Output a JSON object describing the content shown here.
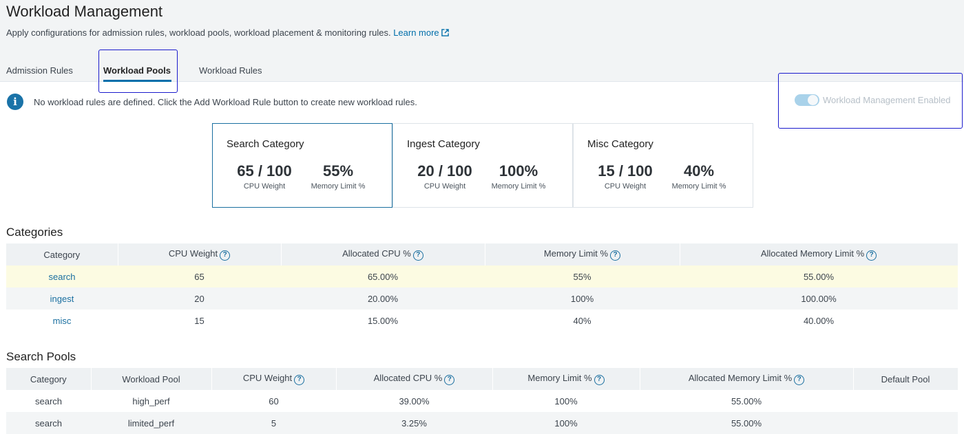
{
  "header": {
    "title": "Workload Management",
    "subtitle": "Apply configurations for admission rules, workload pools, workload placement & monitoring rules.",
    "learn_more": "Learn more"
  },
  "tabs": [
    {
      "label": "Admission Rules",
      "active": false
    },
    {
      "label": "Workload Pools",
      "active": true
    },
    {
      "label": "Workload Rules",
      "active": false
    }
  ],
  "info_message": "No workload rules are defined. Click the Add Workload Rule button to create new workload rules.",
  "toggle": {
    "label": "Workload Management Enabled",
    "enabled": true
  },
  "cards": [
    {
      "title": "Search Category",
      "cpu": "65 / 100",
      "cpu_label": "CPU Weight",
      "mem": "55%",
      "mem_label": "Memory Limit %"
    },
    {
      "title": "Ingest Category",
      "cpu": "20 / 100",
      "cpu_label": "CPU Weight",
      "mem": "100%",
      "mem_label": "Memory Limit %"
    },
    {
      "title": "Misc Category",
      "cpu": "15 / 100",
      "cpu_label": "CPU Weight",
      "mem": "40%",
      "mem_label": "Memory Limit %"
    }
  ],
  "categories": {
    "title": "Categories",
    "columns": [
      "Category",
      "CPU Weight",
      "Allocated CPU %",
      "Memory Limit %",
      "Allocated Memory Limit %"
    ],
    "rows": [
      [
        "search",
        "65",
        "65.00%",
        "55%",
        "55.00%"
      ],
      [
        "ingest",
        "20",
        "20.00%",
        "100%",
        "100.00%"
      ],
      [
        "misc",
        "15",
        "15.00%",
        "40%",
        "40.00%"
      ]
    ]
  },
  "search_pools": {
    "title": "Search Pools",
    "columns": [
      "Category",
      "Workload Pool",
      "CPU Weight",
      "Allocated CPU %",
      "Memory Limit %",
      "Allocated Memory Limit %",
      "Default Pool"
    ],
    "rows": [
      [
        "search",
        "high_perf",
        "60",
        "39.00%",
        "100%",
        "55.00%",
        ""
      ],
      [
        "search",
        "limited_perf",
        "5",
        "3.25%",
        "100%",
        "55.00%",
        ""
      ]
    ]
  },
  "colors": {
    "accent": "#006eaa",
    "highlight_row": "#fcfbe2",
    "annotation": "#1a1acc"
  },
  "icons": {
    "info": "info-icon",
    "external": "external-link-icon",
    "help": "help-icon"
  }
}
